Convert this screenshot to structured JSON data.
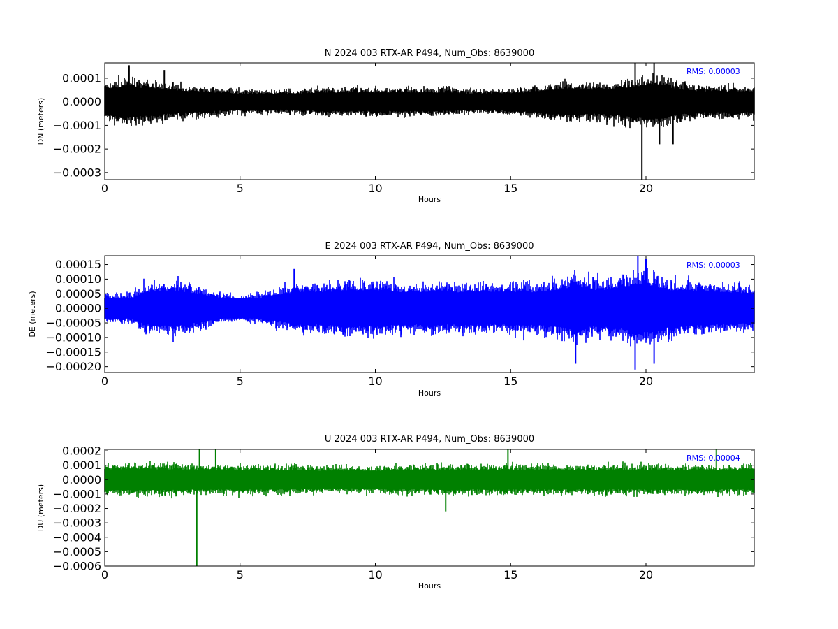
{
  "chart_data": [
    {
      "type": "line",
      "title": "N 2024 003 RTX-AR  P494, Num_Obs: 8639000",
      "xlabel": "Hours",
      "ylabel": "DN (meters)",
      "xlim": [
        0,
        24
      ],
      "ylim": [
        -0.00033,
        0.000165
      ],
      "xticks": [
        0,
        5,
        10,
        15,
        20
      ],
      "xtick_labels": [
        "0",
        "5",
        "10",
        "15",
        "20"
      ],
      "yticks": [
        0.0001,
        0.0,
        -0.0001,
        -0.0002,
        -0.0003
      ],
      "ytick_labels": [
        "0.0001",
        "0.0000",
        "−0.0001",
        "−0.0002",
        "−0.0003"
      ],
      "color": "#000000",
      "rms_text": "RMS:  0.00003",
      "rms_color": "#0000ff",
      "grid": false,
      "envelope": {
        "x": [
          0,
          0.8,
          1.0,
          2.0,
          2.2,
          4.0,
          5.0,
          7.0,
          8.0,
          10.0,
          12.0,
          14.0,
          15.5,
          16.5,
          17.5,
          18.0,
          19.0,
          19.7,
          20.2,
          20.8,
          21.0,
          22.0,
          23.0,
          24.0
        ],
        "amp": [
          9e-05,
          0.00012,
          0.00011,
          0.0001,
          9e-05,
          7e-05,
          6e-05,
          6e-05,
          7e-05,
          7e-05,
          7e-05,
          6e-05,
          7e-05,
          9e-05,
          0.0001,
          9e-05,
          0.0001,
          0.00012,
          0.00013,
          0.00012,
          0.0001,
          8e-05,
          8e-05,
          8e-05
        ]
      },
      "spikes": [
        {
          "x": 0.9,
          "y": 0.000155
        },
        {
          "x": 2.2,
          "y": 0.000135
        },
        {
          "x": 19.6,
          "y": 0.000165
        },
        {
          "x": 19.85,
          "y": -0.00033
        },
        {
          "x": 20.3,
          "y": 0.000165
        },
        {
          "x": 20.5,
          "y": -0.00018
        },
        {
          "x": 21.0,
          "y": -0.00018
        }
      ]
    },
    {
      "type": "line",
      "title": "E 2024 003 RTX-AR  P494, Num_Obs: 8639000",
      "xlabel": "Hours",
      "ylabel": "DE (meters)",
      "xlim": [
        0,
        24
      ],
      "ylim": [
        -0.00022,
        0.00018
      ],
      "xticks": [
        0,
        5,
        10,
        15,
        20
      ],
      "xtick_labels": [
        "0",
        "5",
        "10",
        "15",
        "20"
      ],
      "yticks": [
        0.00015,
        0.0001,
        5e-05,
        0.0,
        -5e-05,
        -0.0001,
        -0.00015,
        -0.0002
      ],
      "ytick_labels": [
        "0.00015",
        "0.00010",
        "0.00005",
        "0.00000",
        "−0.00005",
        "−0.00010",
        "−0.00015",
        "−0.00020"
      ],
      "color": "#0000ff",
      "rms_text": "RMS:  0.00003",
      "rms_color": "#0000ff",
      "grid": false,
      "envelope": {
        "x": [
          0,
          1.0,
          1.5,
          2.5,
          3.0,
          4.0,
          5.0,
          6.0,
          6.5,
          7.0,
          8.0,
          9.0,
          10.0,
          11.0,
          12.0,
          13.0,
          14.0,
          15.0,
          16.0,
          17.0,
          17.5,
          18.0,
          19.0,
          19.7,
          20.2,
          20.8,
          21.5,
          22.0,
          23.0,
          24.0
        ],
        "amp": [
          6e-05,
          6e-05,
          0.0001,
          0.00011,
          0.0001,
          7e-05,
          5e-05,
          7e-05,
          8e-05,
          0.0001,
          0.0001,
          0.00011,
          0.00011,
          0.0001,
          0.0001,
          0.0001,
          0.0001,
          0.0001,
          0.0001,
          0.00012,
          0.00014,
          0.00011,
          0.00012,
          0.00015,
          0.00014,
          0.00011,
          0.00011,
          0.0001,
          0.0001,
          9e-05
        ]
      },
      "spikes": [
        {
          "x": 7.0,
          "y": 0.000135
        },
        {
          "x": 17.4,
          "y": -0.00019
        },
        {
          "x": 19.7,
          "y": 0.00018
        },
        {
          "x": 19.6,
          "y": -0.00021
        },
        {
          "x": 20.0,
          "y": 0.00017
        },
        {
          "x": 20.3,
          "y": -0.00019
        }
      ]
    },
    {
      "type": "line",
      "title": "U 2024 003 RTX-AR  P494, Num_Obs: 8639000",
      "xlabel": "Hours",
      "ylabel": "DU (meters)",
      "xlim": [
        0,
        24
      ],
      "ylim": [
        -0.0006,
        0.00021
      ],
      "xticks": [
        0,
        5,
        10,
        15,
        20
      ],
      "xtick_labels": [
        "0",
        "5",
        "10",
        "15",
        "20"
      ],
      "yticks": [
        0.0002,
        0.0001,
        0.0,
        -0.0001,
        -0.0002,
        -0.0003,
        -0.0004,
        -0.0005,
        -0.0006
      ],
      "ytick_labels": [
        "0.0002",
        "0.0001",
        "0.0000",
        "−0.0001",
        "−0.0002",
        "−0.0003",
        "−0.0004",
        "−0.0005",
        "−0.0006"
      ],
      "color": "#008000",
      "rms_text": "RMS:  0.00004",
      "rms_color": "#0000ff",
      "grid": false,
      "envelope": {
        "x": [
          0,
          2.0,
          4.0,
          6.0,
          8.0,
          10.0,
          12.0,
          14.0,
          16.0,
          18.0,
          20.0,
          22.0,
          24.0
        ],
        "amp": [
          0.00013,
          0.00013,
          0.00012,
          0.00012,
          0.00011,
          0.00011,
          0.00012,
          0.00012,
          0.00012,
          0.00012,
          0.00012,
          0.00012,
          0.00012
        ]
      },
      "spikes": [
        {
          "x": 3.4,
          "y": -0.0006
        },
        {
          "x": 3.5,
          "y": 0.00021
        },
        {
          "x": 4.1,
          "y": 0.00021
        },
        {
          "x": 12.6,
          "y": -0.00022
        },
        {
          "x": 14.9,
          "y": 0.00021
        },
        {
          "x": 22.6,
          "y": 0.00021
        }
      ]
    }
  ]
}
